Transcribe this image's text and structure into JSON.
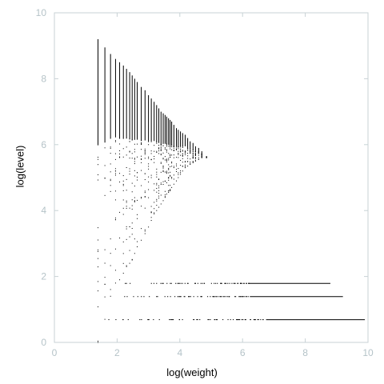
{
  "chart_data": {
    "type": "scatter",
    "title": "",
    "xlabel": "log(weight)",
    "ylabel": "log(level)",
    "xlim": [
      0,
      10
    ],
    "ylim": [
      0,
      10
    ],
    "xticks": [
      0,
      2,
      4,
      6,
      8,
      10
    ],
    "yticks": [
      0,
      2,
      4,
      6,
      8,
      10
    ],
    "xtick_labels": [
      "0",
      "2",
      "4",
      "6",
      "8",
      "10"
    ],
    "ytick_labels": [
      "0",
      "2",
      "4",
      "6",
      "8",
      "10"
    ],
    "grid": false,
    "legend": "none",
    "colors": {
      "points": "#000000",
      "axes": "#c8d2d5",
      "tick_labels": "#b5c3c8"
    },
    "upper_cluster_columns": [
      {
        "x": 1.39,
        "y_min": 0.0,
        "y_max": 9.2
      },
      {
        "x": 1.61,
        "y_min": 0.7,
        "y_max": 8.95
      },
      {
        "x": 1.79,
        "y_min": 1.4,
        "y_max": 8.75
      },
      {
        "x": 1.95,
        "y_min": 1.8,
        "y_max": 8.6
      },
      {
        "x": 2.08,
        "y_min": 1.9,
        "y_max": 8.5
      },
      {
        "x": 2.2,
        "y_min": 2.1,
        "y_max": 8.4
      },
      {
        "x": 2.3,
        "y_min": 2.3,
        "y_max": 8.3
      },
      {
        "x": 2.4,
        "y_min": 2.4,
        "y_max": 8.2
      },
      {
        "x": 2.48,
        "y_min": 2.5,
        "y_max": 8.1
      },
      {
        "x": 2.56,
        "y_min": 2.7,
        "y_max": 8.0
      },
      {
        "x": 2.64,
        "y_min": 2.9,
        "y_max": 7.9
      },
      {
        "x": 2.77,
        "y_min": 3.1,
        "y_max": 7.75
      },
      {
        "x": 2.89,
        "y_min": 3.3,
        "y_max": 7.65
      },
      {
        "x": 3.0,
        "y_min": 3.5,
        "y_max": 7.5
      },
      {
        "x": 3.09,
        "y_min": 3.7,
        "y_max": 7.4
      },
      {
        "x": 3.18,
        "y_min": 3.9,
        "y_max": 7.3
      },
      {
        "x": 3.26,
        "y_min": 4.0,
        "y_max": 7.2
      },
      {
        "x": 3.33,
        "y_min": 4.1,
        "y_max": 7.1
      },
      {
        "x": 3.4,
        "y_min": 4.2,
        "y_max": 7.0
      },
      {
        "x": 3.47,
        "y_min": 4.3,
        "y_max": 6.95
      },
      {
        "x": 3.53,
        "y_min": 4.4,
        "y_max": 6.9
      },
      {
        "x": 3.58,
        "y_min": 4.5,
        "y_max": 6.85
      },
      {
        "x": 3.64,
        "y_min": 4.55,
        "y_max": 6.8
      },
      {
        "x": 3.69,
        "y_min": 4.6,
        "y_max": 6.75
      },
      {
        "x": 3.74,
        "y_min": 4.7,
        "y_max": 6.7
      },
      {
        "x": 3.81,
        "y_min": 4.8,
        "y_max": 6.6
      },
      {
        "x": 3.89,
        "y_min": 4.9,
        "y_max": 6.5
      },
      {
        "x": 3.95,
        "y_min": 5.0,
        "y_max": 6.45
      },
      {
        "x": 4.02,
        "y_min": 5.1,
        "y_max": 6.4
      },
      {
        "x": 4.09,
        "y_min": 5.2,
        "y_max": 6.35
      },
      {
        "x": 4.17,
        "y_min": 5.3,
        "y_max": 6.3
      },
      {
        "x": 4.25,
        "y_min": 5.35,
        "y_max": 6.2
      },
      {
        "x": 4.33,
        "y_min": 5.4,
        "y_max": 6.1
      },
      {
        "x": 4.42,
        "y_min": 5.45,
        "y_max": 6.05
      },
      {
        "x": 4.5,
        "y_min": 5.5,
        "y_max": 5.95
      },
      {
        "x": 4.6,
        "y_min": 5.55,
        "y_max": 5.9
      },
      {
        "x": 4.7,
        "y_min": 5.6,
        "y_max": 5.8
      },
      {
        "x": 4.85,
        "y_min": 5.6,
        "y_max": 5.65
      }
    ],
    "bottom_rows": [
      {
        "y": 1.79,
        "x_min": 2.0,
        "x_max": 8.8
      },
      {
        "y": 1.39,
        "x_min": 1.39,
        "x_max": 9.2
      },
      {
        "y": 0.69,
        "x_min": 1.61,
        "x_max": 9.9
      }
    ]
  }
}
